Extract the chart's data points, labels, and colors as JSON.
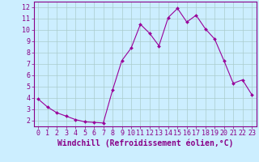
{
  "x": [
    0,
    1,
    2,
    3,
    4,
    5,
    6,
    7,
    8,
    9,
    10,
    11,
    12,
    13,
    14,
    15,
    16,
    17,
    18,
    19,
    20,
    21,
    22,
    23
  ],
  "y": [
    3.9,
    3.2,
    2.7,
    2.4,
    2.1,
    1.9,
    1.85,
    1.8,
    4.7,
    7.3,
    8.4,
    10.5,
    9.7,
    8.6,
    11.1,
    11.9,
    10.7,
    11.3,
    10.1,
    9.2,
    7.3,
    5.3,
    5.6,
    4.3
  ],
  "line_color": "#990099",
  "marker": "D",
  "marker_size": 2,
  "bg_color": "#cceeff",
  "grid_color": "#aacccc",
  "xlabel": "Windchill (Refroidissement éolien,°C)",
  "xlabel_fontsize": 7,
  "xlim": [
    -0.5,
    23.5
  ],
  "ylim": [
    1.5,
    12.5
  ],
  "yticks": [
    2,
    3,
    4,
    5,
    6,
    7,
    8,
    9,
    10,
    11,
    12
  ],
  "xticks": [
    0,
    1,
    2,
    3,
    4,
    5,
    6,
    7,
    8,
    9,
    10,
    11,
    12,
    13,
    14,
    15,
    16,
    17,
    18,
    19,
    20,
    21,
    22,
    23
  ],
  "tick_color": "#880088",
  "tick_fontsize": 6,
  "axis_color": "#880088",
  "spine_color": "#880088"
}
